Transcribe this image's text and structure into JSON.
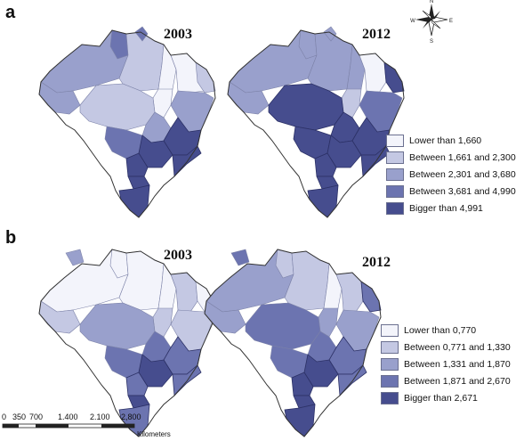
{
  "panels": [
    {
      "label": "a",
      "years": [
        "2003",
        "2012"
      ],
      "legend": [
        {
          "label": "Lower than 1,660",
          "color": "#f3f4fb"
        },
        {
          "label": "Between 1,661 and 2,300",
          "color": "#c4c8e3"
        },
        {
          "label": "Between 2,301 and 3,680",
          "color": "#99a0cc"
        },
        {
          "label": "Between 3,681 and 4,990",
          "color": "#6c74b0"
        },
        {
          "label": "Bigger than 4,991",
          "color": "#464d8e"
        }
      ]
    },
    {
      "label": "b",
      "years": [
        "2003",
        "2012"
      ],
      "legend": [
        {
          "label": "Lower than  0,770",
          "color": "#f3f4fb"
        },
        {
          "label": "Between 0,771 and 1,330",
          "color": "#c4c8e3"
        },
        {
          "label": "Between 1,331 and 1,870",
          "color": "#99a0cc"
        },
        {
          "label": "Between 1,871 and 2,670",
          "color": "#6c74b0"
        },
        {
          "label": "Bigger than 2,671",
          "color": "#464d8e"
        }
      ]
    }
  ],
  "compass": {
    "icon": "north-arrow-icon",
    "n": "N",
    "s": "S",
    "e": "E",
    "w": "W"
  },
  "scale_bar": {
    "ticks": [
      "0",
      "350",
      "700",
      "1.400",
      "2.100",
      "2,800"
    ],
    "unit": "Kilometers"
  }
}
